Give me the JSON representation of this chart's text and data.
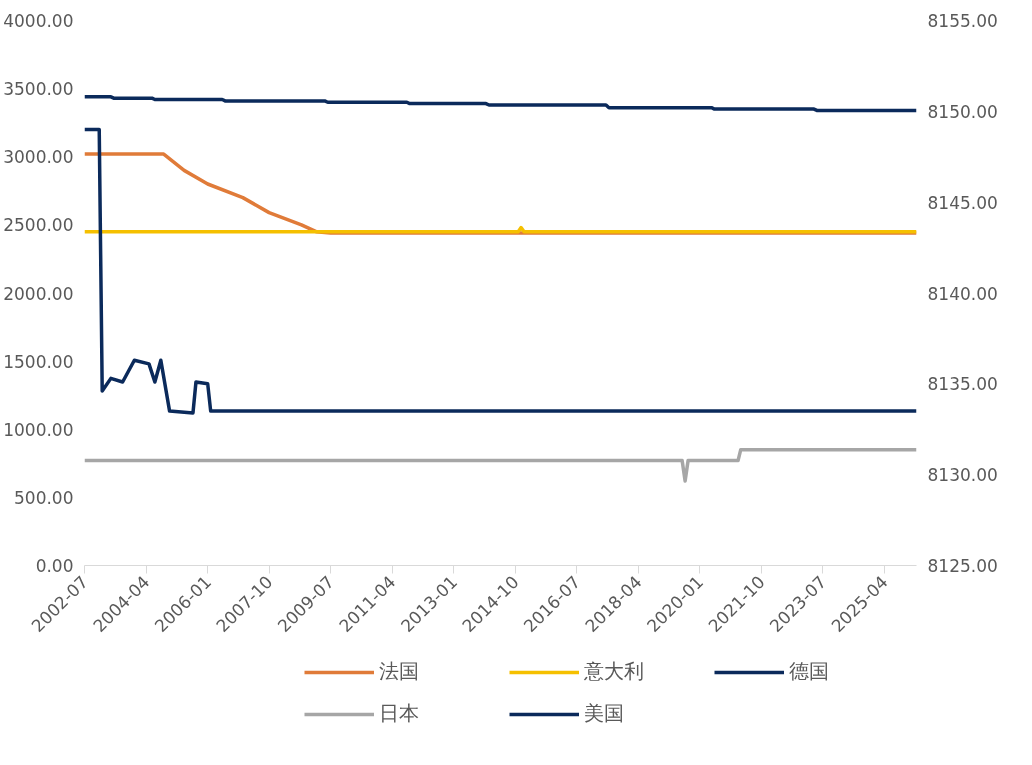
{
  "chart_data": {
    "type": "line",
    "xlim": [
      "2002-07",
      "2026-03"
    ],
    "xticks": [
      "2002-07",
      "2004-04",
      "2006-01",
      "2007-10",
      "2009-07",
      "2011-04",
      "2013-01",
      "2014-10",
      "2016-07",
      "2018-04",
      "2020-01",
      "2021-10",
      "2023-07",
      "2025-04"
    ],
    "ylim": [
      0,
      4000
    ],
    "yticks": [
      {
        "value": 0,
        "label": "0.00"
      },
      {
        "value": 500,
        "label": "500.00"
      },
      {
        "value": 1000,
        "label": "1000.00"
      },
      {
        "value": 1500,
        "label": "1500.00"
      },
      {
        "value": 2000,
        "label": "2000.00"
      },
      {
        "value": 2500,
        "label": "2500.00"
      },
      {
        "value": 3000,
        "label": "3000.00"
      },
      {
        "value": 3500,
        "label": "3500.00"
      },
      {
        "value": 4000,
        "label": "4000.00"
      }
    ],
    "y2lim": [
      8125,
      8155
    ],
    "y2ticks": [
      {
        "value": 8125,
        "label": "8125.00"
      },
      {
        "value": 8130,
        "label": "8130.00"
      },
      {
        "value": 8135,
        "label": "8135.00"
      },
      {
        "value": 8140,
        "label": "8140.00"
      },
      {
        "value": 8145,
        "label": "8145.00"
      },
      {
        "value": 8150,
        "label": "8150.00"
      },
      {
        "value": 8155,
        "label": "8155.00"
      }
    ],
    "grid": false,
    "legend": "bottom",
    "line_style": "solid",
    "marker": "none",
    "series": [
      {
        "name": "法国",
        "color": "#e07b39",
        "x": [
          "2002-07",
          "2004-10",
          "2005-05",
          "2006-01",
          "2007-01",
          "2007-10",
          "2008-09",
          "2009-02",
          "2009-07",
          "2026-03"
        ],
        "values": [
          3020,
          3020,
          2900,
          2800,
          2700,
          2590,
          2500,
          2450,
          2440,
          2440
        ]
      },
      {
        "name": "意大利",
        "color": "#f5c000",
        "x": [
          "2002-07",
          "2014-11",
          "2014-12",
          "2015-01",
          "2026-03"
        ],
        "values": [
          2450,
          2450,
          2480,
          2450,
          2450
        ]
      },
      {
        "name": "德国",
        "color": "#0b2a5b",
        "x": [
          "2002-07",
          "2003-04",
          "2003-05",
          "2004-06",
          "2004-07",
          "2006-06",
          "2006-07",
          "2009-05",
          "2009-06",
          "2011-09",
          "2011-10",
          "2013-12",
          "2014-01",
          "2017-05",
          "2017-06",
          "2020-05",
          "2020-06",
          "2023-04",
          "2023-05",
          "2026-03"
        ],
        "values": [
          3440,
          3440,
          3430,
          3430,
          3420,
          3420,
          3410,
          3410,
          3400,
          3400,
          3390,
          3390,
          3380,
          3380,
          3360,
          3360,
          3350,
          3350,
          3340,
          3340
        ]
      },
      {
        "name": "日本",
        "color": "#a6a6a6",
        "x": [
          "2002-07",
          "2019-07",
          "2019-08",
          "2019-09",
          "2021-02",
          "2021-03",
          "2026-03"
        ],
        "values": [
          770,
          770,
          620,
          770,
          770,
          850,
          850
        ]
      },
      {
        "name": "美国",
        "color": "#0b2a5b",
        "axis": "y2",
        "x": [
          "2002-07",
          "2002-12",
          "2003-01",
          "2003-04",
          "2003-08",
          "2003-12",
          "2004-05",
          "2004-07",
          "2004-09",
          "2004-12",
          "2005-08",
          "2005-09",
          "2006-01",
          "2006-02",
          "2026-03"
        ],
        "values": [
          8149.0,
          8149.0,
          8134.6,
          8135.3,
          8135.1,
          8136.3,
          8136.1,
          8135.1,
          8136.3,
          8133.5,
          8133.4,
          8135.1,
          8135.0,
          8133.5,
          8133.5
        ]
      }
    ]
  }
}
